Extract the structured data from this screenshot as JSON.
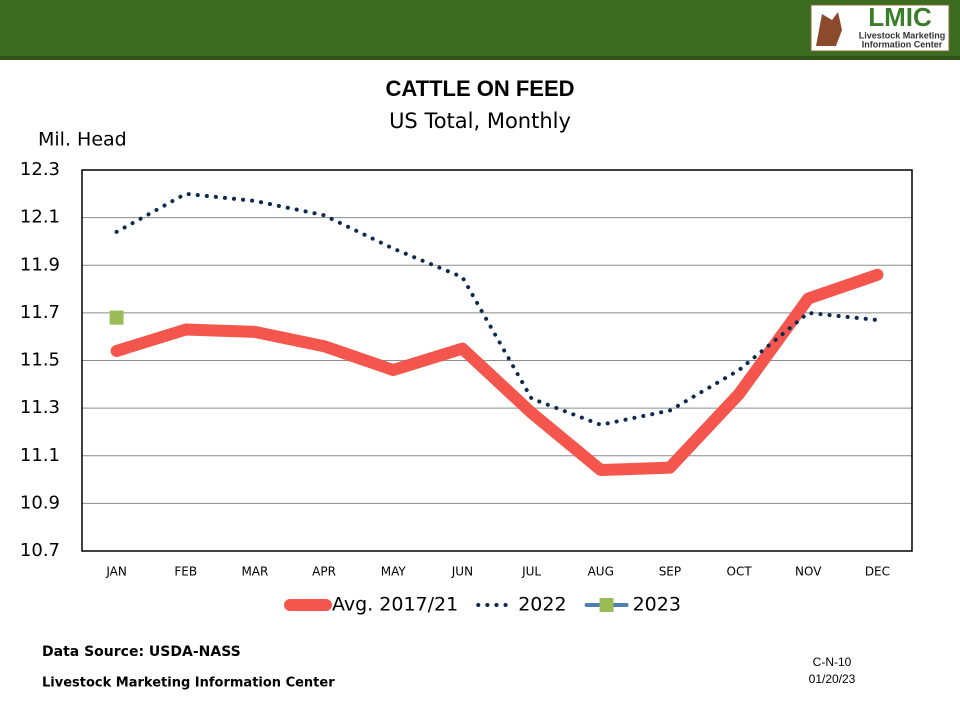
{
  "logo": {
    "name": "LMIC",
    "line1": "Livestock Marketing",
    "line2": "Information Center"
  },
  "chart_data": {
    "type": "line",
    "title": "CATTLE ON FEED",
    "subtitle": "US Total, Monthly",
    "y_label": "Mil. Head",
    "categories": [
      "JAN",
      "FEB",
      "MAR",
      "APR",
      "MAY",
      "JUN",
      "JUL",
      "AUG",
      "SEP",
      "OCT",
      "NOV",
      "DEC"
    ],
    "series": [
      {
        "name": "Avg. 2017/21",
        "color": "#f4564d",
        "line_style": "solid",
        "values": [
          11.54,
          11.63,
          11.62,
          11.56,
          11.46,
          11.55,
          11.28,
          11.04,
          11.05,
          11.36,
          11.76,
          11.86
        ]
      },
      {
        "name": "2022",
        "color": "#0d2a4f",
        "line_style": "dotted",
        "values": [
          12.04,
          12.2,
          12.17,
          12.11,
          11.97,
          11.85,
          11.34,
          11.23,
          11.29,
          11.46,
          11.7,
          11.67
        ]
      },
      {
        "name": "2023",
        "color": "#4f7fb0",
        "marker_color": "#9bbb59",
        "line_style": "solid",
        "marker": "square",
        "values": [
          11.68,
          null,
          null,
          null,
          null,
          null,
          null,
          null,
          null,
          null,
          null,
          null
        ]
      }
    ],
    "ylim": [
      10.7,
      12.3
    ],
    "yticks": [
      10.7,
      10.9,
      11.1,
      11.3,
      11.5,
      11.7,
      11.9,
      12.1,
      12.3
    ],
    "grid": true,
    "legend": "bottom"
  },
  "footer": {
    "source": "Data Source:  USDA-NASS",
    "org": "Livestock Marketing Information Center",
    "code": "C-N-10",
    "date": "01/20/23"
  }
}
